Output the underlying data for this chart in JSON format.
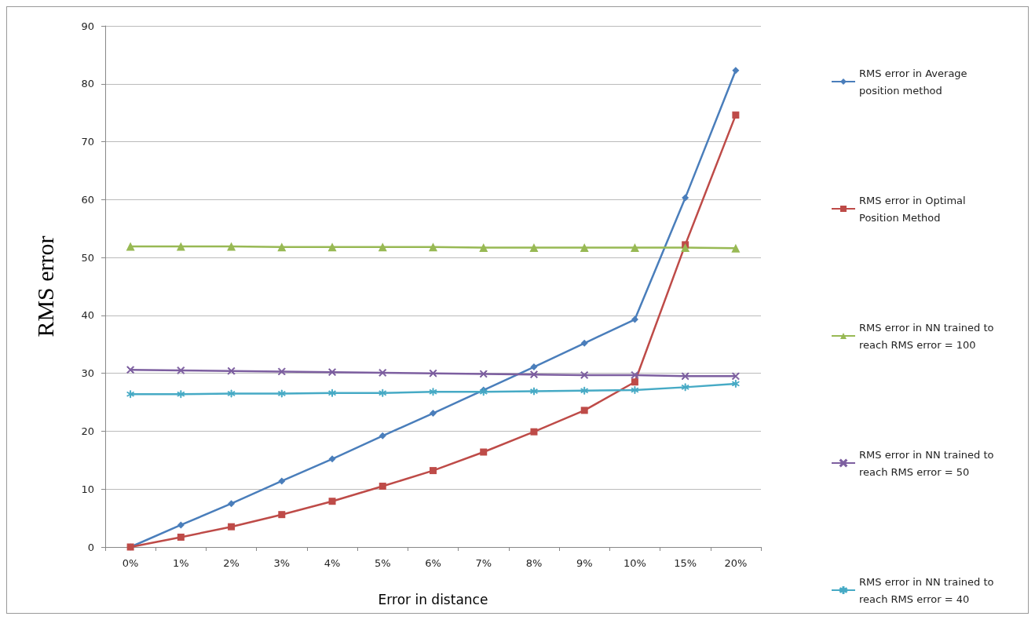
{
  "chart_data": {
    "type": "line",
    "xlabel": "Error in distance",
    "ylabel": "RMS error",
    "categories": [
      "0%",
      "1%",
      "2%",
      "3%",
      "4%",
      "5%",
      "6%",
      "7%",
      "8%",
      "9%",
      "10%",
      "15%",
      "20%"
    ],
    "ylim": [
      0,
      90
    ],
    "yticks": [
      0,
      10,
      20,
      30,
      40,
      50,
      60,
      70,
      80,
      90
    ],
    "grid": "y",
    "legend": "right",
    "series": [
      {
        "name": "RMS error in Average position method",
        "color": "#4a7ebb",
        "marker": "diamond",
        "values": [
          0,
          3.8,
          7.5,
          11.4,
          15.2,
          19.2,
          23.1,
          27.1,
          31.1,
          35.2,
          39.3,
          60.3,
          82.3
        ]
      },
      {
        "name": "RMS error in Optimal Position Method",
        "color": "#be4b48",
        "marker": "square",
        "values": [
          0,
          1.7,
          3.5,
          5.6,
          7.9,
          10.5,
          13.2,
          16.4,
          19.9,
          23.6,
          28.5,
          52.2,
          74.6
        ]
      },
      {
        "name": "RMS error in NN trained to reach RMS error = 100",
        "color": "#98b954",
        "marker": "triangle",
        "values": [
          51.9,
          51.9,
          51.9,
          51.8,
          51.8,
          51.8,
          51.8,
          51.7,
          51.7,
          51.7,
          51.7,
          51.7,
          51.6
        ]
      },
      {
        "name": "RMS error in NN trained to reach RMS error = 50",
        "color": "#7d5fa0",
        "marker": "cross",
        "values": [
          30.6,
          30.5,
          30.4,
          30.3,
          30.2,
          30.1,
          30.0,
          29.9,
          29.8,
          29.7,
          29.7,
          29.5,
          29.5
        ]
      },
      {
        "name": "RMS error in NN trained to reach RMS error = 40",
        "color": "#46aac5",
        "marker": "star",
        "values": [
          26.4,
          26.4,
          26.5,
          26.5,
          26.6,
          26.6,
          26.8,
          26.8,
          26.9,
          27.0,
          27.1,
          27.6,
          28.2
        ]
      }
    ]
  }
}
